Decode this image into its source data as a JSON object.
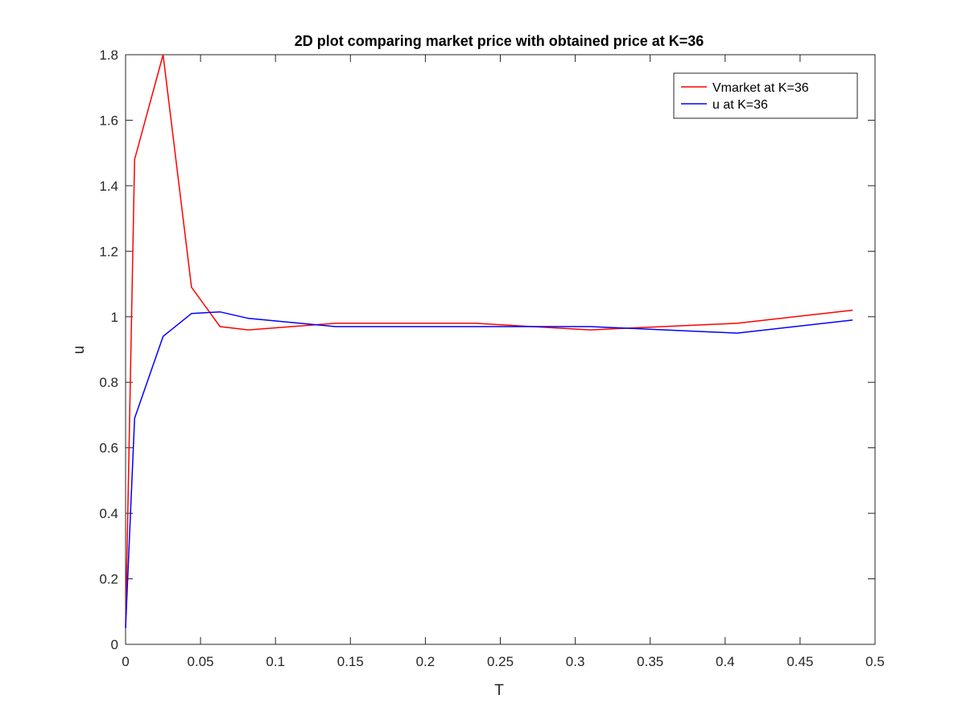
{
  "chart_data": {
    "type": "line",
    "title": "2D plot comparing market price with obtained price at K=36",
    "xlabel": "T",
    "ylabel": "u",
    "xlim": [
      0,
      0.5
    ],
    "ylim": [
      0,
      1.8
    ],
    "xticks": [
      0,
      0.05,
      0.1,
      0.15,
      0.2,
      0.25,
      0.3,
      0.35,
      0.4,
      0.45,
      0.5
    ],
    "xtick_labels": [
      "0",
      "0.05",
      "0.1",
      "0.15",
      "0.2",
      "0.25",
      "0.3",
      "0.35",
      "0.4",
      "0.45",
      "0.5"
    ],
    "yticks": [
      0,
      0.2,
      0.4,
      0.6,
      0.8,
      1,
      1.2,
      1.4,
      1.6,
      1.8
    ],
    "ytick_labels": [
      "0",
      "0.2",
      "0.4",
      "0.6",
      "0.8",
      "1",
      "1.2",
      "1.4",
      "1.6",
      "1.8"
    ],
    "grid": false,
    "legend_position": "top-right",
    "series": [
      {
        "name": "Vmarket at K=36",
        "color": "#ff0000",
        "x": [
          0,
          0.006,
          0.025,
          0.044,
          0.063,
          0.082,
          0.14,
          0.233,
          0.31,
          0.408,
          0.485
        ],
        "y": [
          0.05,
          1.48,
          1.8,
          1.09,
          0.97,
          0.96,
          0.98,
          0.98,
          0.96,
          0.98,
          1.02
        ]
      },
      {
        "name": "u at K=36",
        "color": "#0000ff",
        "x": [
          0,
          0.006,
          0.025,
          0.044,
          0.063,
          0.082,
          0.14,
          0.233,
          0.31,
          0.408,
          0.485
        ],
        "y": [
          0.05,
          0.69,
          0.94,
          1.01,
          1.015,
          0.995,
          0.97,
          0.97,
          0.97,
          0.95,
          0.99
        ]
      }
    ]
  }
}
